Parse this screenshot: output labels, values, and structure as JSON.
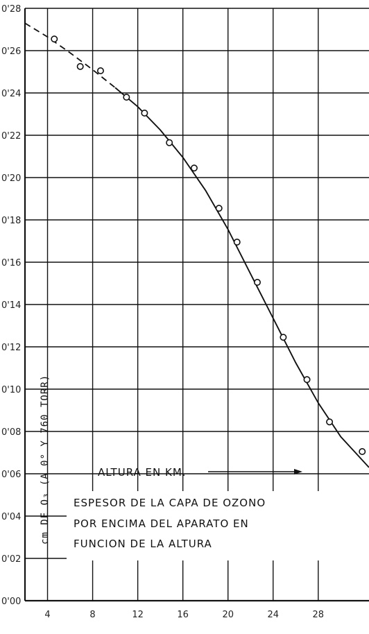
{
  "chart_data": {
    "type": "scatter",
    "title": "",
    "annotation_lines": [
      "ESPESOR DE LA CAPA DE OZONO",
      "POR ENCIMA DEL APARATO EN",
      "FUNCION DE LA ALTURA"
    ],
    "xlabel": "ALTURA EN KM.",
    "ylabel": "cm DE O₃ (A 0° Y 760 TORR)",
    "xlim": [
      2,
      32.5
    ],
    "ylim": [
      0,
      0.28
    ],
    "x_ticks": [
      4,
      8,
      12,
      16,
      20,
      24,
      28
    ],
    "x_tick_labels": [
      "4",
      "8",
      "12",
      "16",
      "20",
      "24",
      "28"
    ],
    "y_ticks": [
      0,
      0.02,
      0.04,
      0.06,
      0.08,
      0.1,
      0.12,
      0.14,
      0.16,
      0.18,
      0.2,
      0.22,
      0.24,
      0.26,
      0.28
    ],
    "y_tick_labels": [
      "0'00",
      "0'02",
      "0'04",
      "0'06",
      "0'08",
      "0'10",
      "0'12",
      "0'14",
      "0'16",
      "0'18",
      "0'20",
      "0'22",
      "0'24",
      "0'26",
      "0'28"
    ],
    "grid": true,
    "series": [
      {
        "points": [
          {
            "x": 4.6,
            "y": 0.2655
          },
          {
            "x": 6.9,
            "y": 0.2525
          },
          {
            "x": 8.7,
            "y": 0.2505
          },
          {
            "x": 11.0,
            "y": 0.238
          },
          {
            "x": 12.6,
            "y": 0.2305
          },
          {
            "x": 14.8,
            "y": 0.2165
          },
          {
            "x": 17.0,
            "y": 0.2045
          },
          {
            "x": 19.2,
            "y": 0.1855
          },
          {
            "x": 20.8,
            "y": 0.1695
          },
          {
            "x": 22.6,
            "y": 0.1505
          },
          {
            "x": 24.9,
            "y": 0.1245
          },
          {
            "x": 27.0,
            "y": 0.1045
          },
          {
            "x": 29.0,
            "y": 0.0845
          },
          {
            "x": 31.9,
            "y": 0.0705
          }
        ]
      }
    ],
    "fit_curve_dashed": [
      {
        "x": 2.0,
        "y": 0.273
      },
      {
        "x": 4.0,
        "y": 0.2665
      },
      {
        "x": 6.0,
        "y": 0.259
      },
      {
        "x": 8.0,
        "y": 0.251
      },
      {
        "x": 10.0,
        "y": 0.2425
      }
    ],
    "fit_curve_solid": [
      {
        "x": 10.0,
        "y": 0.2425
      },
      {
        "x": 12.0,
        "y": 0.2335
      },
      {
        "x": 14.0,
        "y": 0.2225
      },
      {
        "x": 16.0,
        "y": 0.2095
      },
      {
        "x": 18.0,
        "y": 0.194
      },
      {
        "x": 20.0,
        "y": 0.1755
      },
      {
        "x": 22.0,
        "y": 0.1545
      },
      {
        "x": 24.0,
        "y": 0.1335
      },
      {
        "x": 26.0,
        "y": 0.1125
      },
      {
        "x": 28.0,
        "y": 0.0935
      },
      {
        "x": 30.0,
        "y": 0.0775
      },
      {
        "x": 32.5,
        "y": 0.063
      }
    ]
  }
}
